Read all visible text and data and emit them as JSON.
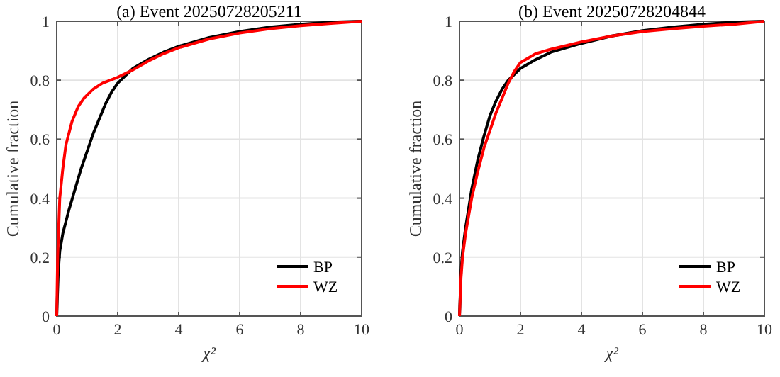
{
  "chart_data": [
    {
      "type": "line",
      "title": "(a) Event 20250728205211",
      "xlabel": "χ²",
      "ylabel": "Cumulative fraction",
      "xlim": [
        0,
        10
      ],
      "ylim": [
        0,
        1
      ],
      "xticks": [
        0,
        2,
        4,
        6,
        8,
        10
      ],
      "yticks": [
        0,
        0.2,
        0.4,
        0.6,
        0.8,
        1
      ],
      "grid": true,
      "legend": "bottom right",
      "series": [
        {
          "name": "BP",
          "color": "#000000",
          "x": [
            0,
            0.05,
            0.1,
            0.2,
            0.4,
            0.6,
            0.8,
            1.0,
            1.2,
            1.4,
            1.6,
            1.8,
            2,
            2.5,
            3,
            3.5,
            4,
            5,
            6,
            7,
            8,
            9,
            10
          ],
          "values": [
            0,
            0.15,
            0.22,
            0.28,
            0.36,
            0.43,
            0.5,
            0.56,
            0.62,
            0.67,
            0.72,
            0.76,
            0.79,
            0.84,
            0.87,
            0.895,
            0.915,
            0.945,
            0.965,
            0.98,
            0.99,
            0.997,
            1
          ]
        },
        {
          "name": "WZ",
          "color": "#ff0000",
          "x": [
            0,
            0.03,
            0.1,
            0.2,
            0.3,
            0.5,
            0.7,
            0.9,
            1.2,
            1.5,
            2,
            2.5,
            3,
            3.5,
            4,
            5,
            6,
            7,
            8,
            9,
            10
          ],
          "values": [
            0,
            0.2,
            0.4,
            0.5,
            0.58,
            0.66,
            0.71,
            0.74,
            0.77,
            0.79,
            0.81,
            0.835,
            0.865,
            0.89,
            0.91,
            0.94,
            0.96,
            0.975,
            0.985,
            0.993,
            1
          ]
        }
      ]
    },
    {
      "type": "line",
      "title": "(b) Event 20250728204844",
      "xlabel": "χ²",
      "ylabel": "Cumulative fraction",
      "xlim": [
        0,
        10
      ],
      "ylim": [
        0,
        1
      ],
      "xticks": [
        0,
        2,
        4,
        6,
        8,
        10
      ],
      "yticks": [
        0,
        0.2,
        0.4,
        0.6,
        0.8,
        1
      ],
      "grid": true,
      "legend": "bottom right",
      "series": [
        {
          "name": "BP",
          "color": "#000000",
          "x": [
            0,
            0.05,
            0.1,
            0.2,
            0.4,
            0.6,
            0.8,
            1,
            1.2,
            1.4,
            1.6,
            2,
            2.5,
            3,
            4,
            5,
            6,
            7,
            8,
            9,
            10
          ],
          "values": [
            0,
            0.15,
            0.22,
            0.3,
            0.43,
            0.53,
            0.61,
            0.68,
            0.73,
            0.77,
            0.8,
            0.84,
            0.87,
            0.895,
            0.925,
            0.95,
            0.968,
            0.98,
            0.99,
            0.997,
            1
          ]
        },
        {
          "name": "WZ",
          "color": "#ff0000",
          "x": [
            0,
            0.05,
            0.1,
            0.2,
            0.4,
            0.6,
            0.8,
            1,
            1.2,
            1.4,
            1.6,
            1.8,
            2,
            2.5,
            3,
            4,
            5,
            6,
            7,
            8,
            9,
            10
          ],
          "values": [
            0,
            0.13,
            0.2,
            0.28,
            0.4,
            0.49,
            0.57,
            0.63,
            0.69,
            0.74,
            0.79,
            0.83,
            0.86,
            0.89,
            0.905,
            0.93,
            0.95,
            0.965,
            0.975,
            0.983,
            0.99,
            1
          ]
        }
      ]
    }
  ]
}
